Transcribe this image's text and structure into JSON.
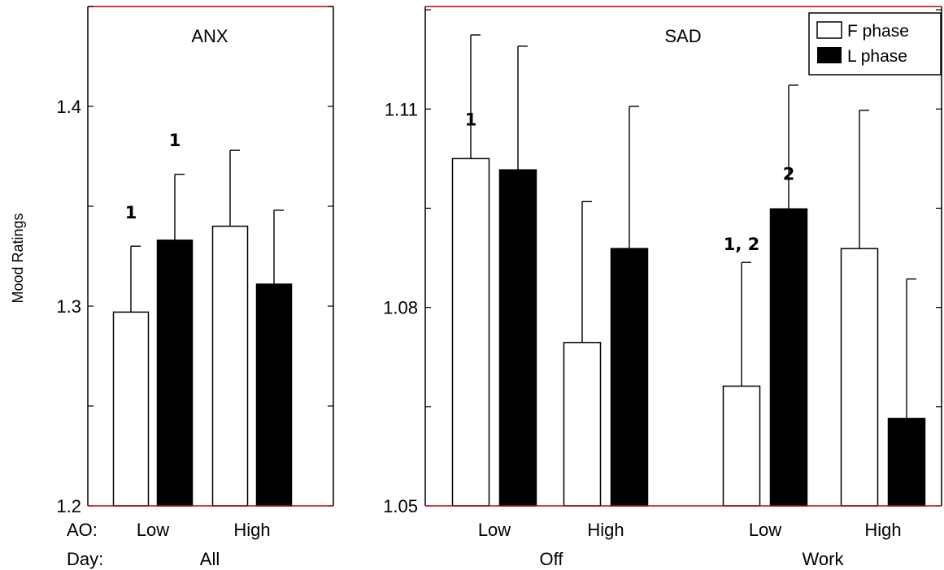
{
  "colors": {
    "frame": "#000000",
    "baseline": "#c00000",
    "f_fill": "#ffffff",
    "l_fill": "#000000"
  },
  "ylabel": "Mood Ratings",
  "row_labels": {
    "ao": "AO:",
    "day": "Day:"
  },
  "legend": {
    "f": "F phase",
    "l": "L phase"
  },
  "chart_data": [
    {
      "type": "bar",
      "title": "ANX",
      "ylim": [
        1.2,
        1.45
      ],
      "yticks": [
        1.2,
        1.3,
        1.4
      ],
      "ytick_labels": [
        "1.2",
        "1.3",
        "1.4"
      ],
      "day_label": "All",
      "categories": [
        "Low",
        "High"
      ],
      "series": [
        {
          "name": "F phase",
          "values": [
            1.297,
            1.34
          ],
          "err": [
            0.033,
            0.038
          ]
        },
        {
          "name": "L phase",
          "values": [
            1.333,
            1.311
          ],
          "err": [
            0.033,
            0.037
          ]
        }
      ],
      "annotations": [
        {
          "text": "1",
          "category": 0,
          "series": 0,
          "y": 1.344
        },
        {
          "text": "1",
          "category": 0,
          "series": 1,
          "y": 1.38
        }
      ]
    },
    {
      "type": "bar",
      "title": "SAD",
      "ylim": [
        1.05,
        1.1255
      ],
      "yticks": [
        1.05,
        1.08,
        1.11
      ],
      "ytick_labels": [
        "1.05",
        "1.08",
        "1.11"
      ],
      "groups": [
        {
          "day_label": "Off",
          "categories": [
            "Low",
            "High"
          ]
        },
        {
          "day_label": "Work",
          "categories": [
            "Low",
            "High"
          ]
        }
      ],
      "series": [
        {
          "name": "F phase",
          "values": [
            1.1025,
            1.0747,
            1.0681,
            1.0889
          ],
          "err": [
            0.0187,
            0.0213,
            0.0187,
            0.0209
          ]
        },
        {
          "name": "L phase",
          "values": [
            1.1008,
            1.0889,
            1.0949,
            1.0632
          ],
          "err": [
            0.0187,
            0.0215,
            0.0187,
            0.0211
          ]
        }
      ],
      "annotations": [
        {
          "text": "1",
          "category": 0,
          "series": 0,
          "y": 1.1075
        },
        {
          "text": "1, 2",
          "category": 2,
          "series": 0,
          "y": 1.0887
        },
        {
          "text": "2",
          "category": 2,
          "series": 1,
          "y": 1.0993
        }
      ]
    }
  ]
}
